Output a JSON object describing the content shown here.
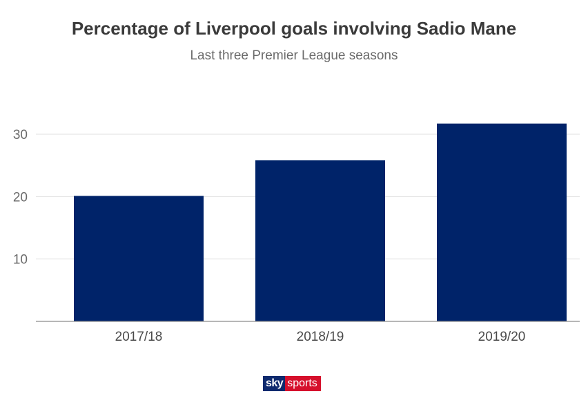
{
  "chart_data": {
    "type": "bar",
    "title": "Percentage of Liverpool goals involving Sadio Mane",
    "subtitle": "Last three Premier League seasons",
    "categories": [
      "2017/18",
      "2018/19",
      "2019/20"
    ],
    "values": [
      20.1,
      25.8,
      31.7
    ],
    "y_ticks": [
      "10",
      "20",
      "30"
    ],
    "ylim": [
      0,
      35
    ],
    "grid": true,
    "bar_color": "#002369"
  },
  "logo": {
    "sky": "sky",
    "sports": "sports"
  }
}
